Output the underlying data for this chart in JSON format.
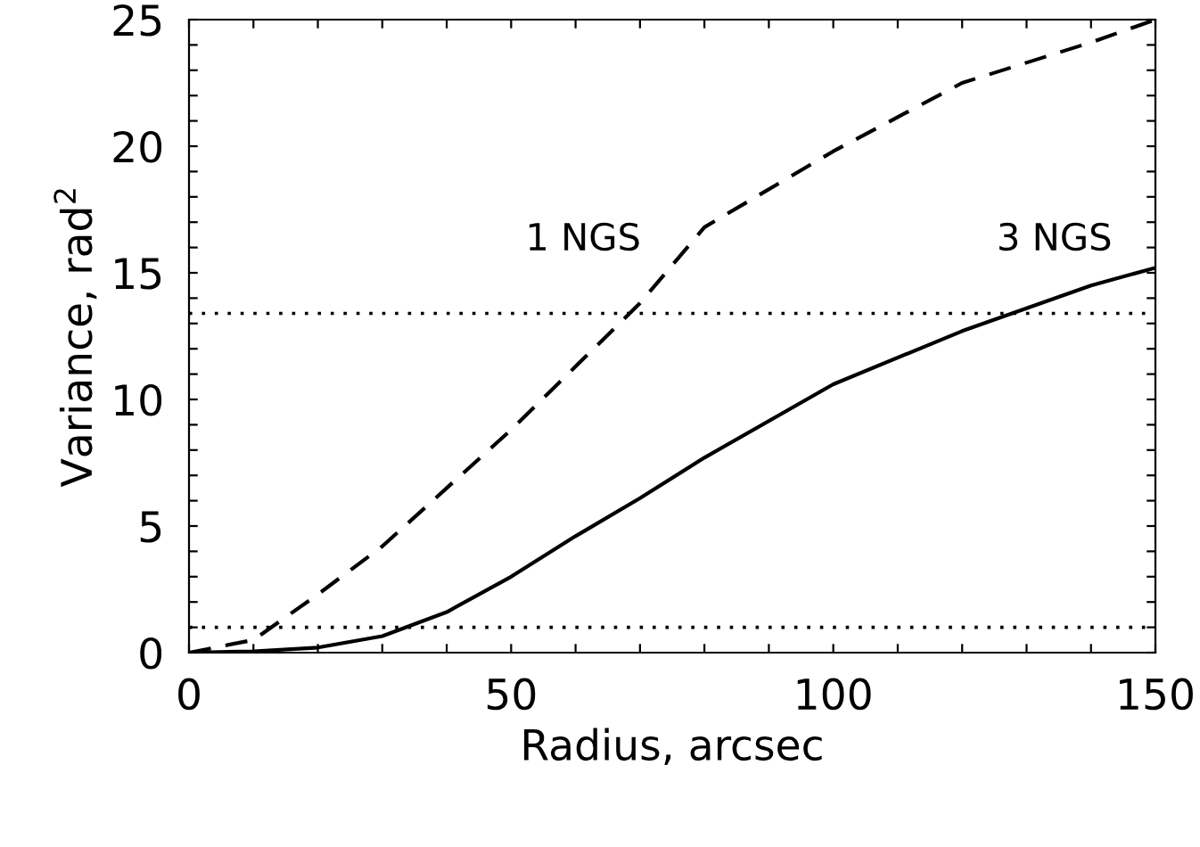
{
  "chart_data": {
    "type": "line",
    "xlabel": "Radius, arcsec",
    "ylabel": "Variance, rad$^{2}$",
    "x": [
      0,
      10,
      20,
      30,
      40,
      50,
      60,
      70,
      80,
      100,
      120,
      140,
      150
    ],
    "series": [
      {
        "color": "#000000",
        "line_style": "dashed",
        "values": [
          0,
          0.5,
          2.3,
          4.2,
          6.5,
          8.8,
          11.3,
          13.8,
          16.8,
          19.8,
          22.5,
          24.1,
          25.0
        ]
      },
      {
        "color": "#000000",
        "line_style": "solid",
        "values": [
          0,
          0.05,
          0.2,
          0.65,
          1.6,
          3.0,
          4.6,
          6.1,
          7.7,
          10.6,
          12.7,
          14.5,
          15.2
        ]
      }
    ],
    "xlim": [
      0,
      150
    ],
    "ylim": [
      0,
      25
    ],
    "xticks": [
      0,
      {
        "value": 10,
        "label": null
      },
      {
        "value": 20,
        "label": null
      },
      {
        "value": 30,
        "label": null
      },
      {
        "value": 40,
        "label": null
      },
      50,
      {
        "value": 60,
        "label": null
      },
      {
        "value": 70,
        "label": null
      },
      {
        "value": 80,
        "label": null
      },
      {
        "value": 90,
        "label": null
      },
      100,
      {
        "value": 110,
        "label": null
      },
      {
        "value": 120,
        "label": null
      },
      {
        "value": 130,
        "label": null
      },
      {
        "value": 140,
        "label": null
      },
      150
    ],
    "yticks": [
      0,
      {
        "value": 1,
        "label": null
      },
      {
        "value": 2,
        "label": null
      },
      {
        "value": 3,
        "label": null
      },
      {
        "value": 4,
        "label": null
      },
      5,
      {
        "value": 6,
        "label": null
      },
      {
        "value": 7,
        "label": null
      },
      {
        "value": 8,
        "label": null
      },
      {
        "value": 9,
        "label": null
      },
      10,
      {
        "value": 11,
        "label": null
      },
      {
        "value": 12,
        "label": null
      },
      {
        "value": 13,
        "label": null
      },
      {
        "value": 14,
        "label": null
      },
      15,
      {
        "value": 16,
        "label": null
      },
      {
        "value": 17,
        "label": null
      },
      {
        "value": 18,
        "label": null
      },
      {
        "value": 19,
        "label": null
      },
      20,
      {
        "value": 21,
        "label": null
      },
      {
        "value": 22,
        "label": null
      },
      {
        "value": 23,
        "label": null
      },
      {
        "value": 24,
        "label": null
      },
      25
    ],
    "ref_lines": [
      {
        "axis": "y",
        "value": 1,
        "line_style": "dotted",
        "color": "#000000"
      },
      {
        "axis": "y",
        "value": 13.4,
        "line_style": "dotted",
        "color": "#000000"
      }
    ],
    "annotations": [
      "1 NGS",
      "3 NGS"
    ],
    "grid": false,
    "legend": false,
    "marker": "none"
  }
}
